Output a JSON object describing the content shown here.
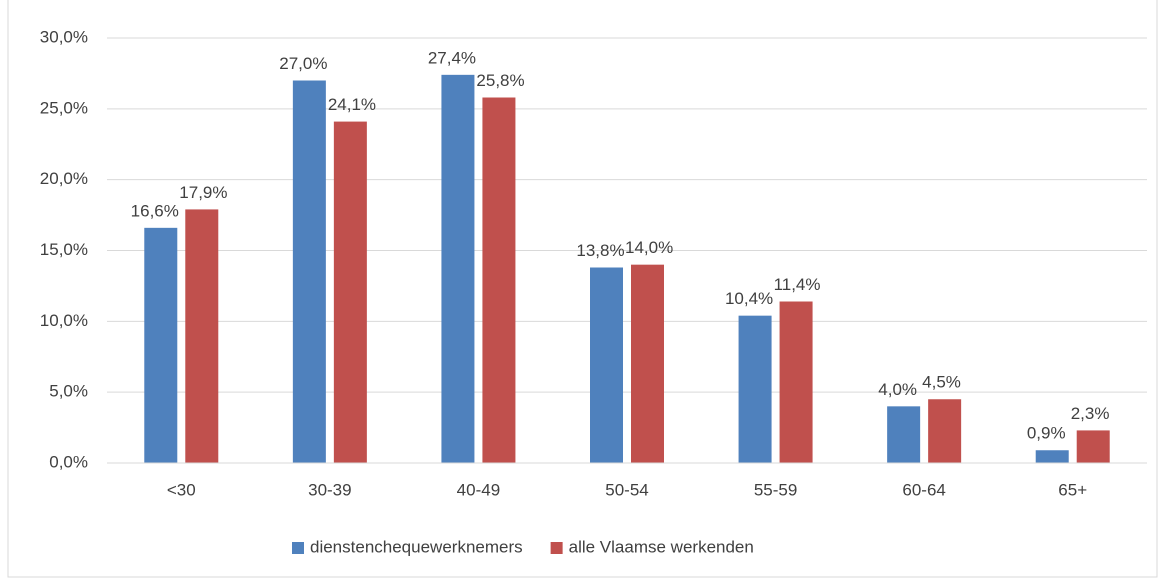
{
  "chart_data": {
    "type": "bar",
    "categories": [
      "<30",
      "30-39",
      "40-49",
      "50-54",
      "55-59",
      "60-64",
      "65+"
    ],
    "series": [
      {
        "name": "dienstenchequewerknemers",
        "color": "#4f81bd",
        "values": [
          16.6,
          27.0,
          27.4,
          13.8,
          10.4,
          4.0,
          0.9
        ],
        "value_labels": [
          "16,6%",
          "27,0%",
          "27,4%",
          "13,8%",
          "10,4%",
          "4,0%",
          "0,9%"
        ]
      },
      {
        "name": "alle Vlaamse werkenden",
        "color": "#c0504d",
        "values": [
          17.9,
          24.1,
          25.8,
          14.0,
          11.4,
          4.5,
          2.3
        ],
        "value_labels": [
          "17,9%",
          "24,1%",
          "25,8%",
          "14,0%",
          "11,4%",
          "4,5%",
          "2,3%"
        ]
      }
    ],
    "ylim": [
      0,
      30
    ],
    "yticks": [
      {
        "value": 0,
        "label": "0,0%"
      },
      {
        "value": 5,
        "label": "5,0%"
      },
      {
        "value": 10,
        "label": "10,0%"
      },
      {
        "value": 15,
        "label": "15,0%"
      },
      {
        "value": 20,
        "label": "20,0%"
      },
      {
        "value": 25,
        "label": "25,0%"
      },
      {
        "value": 30,
        "label": "30,0%"
      }
    ],
    "grid": true,
    "legend": "bottom"
  }
}
